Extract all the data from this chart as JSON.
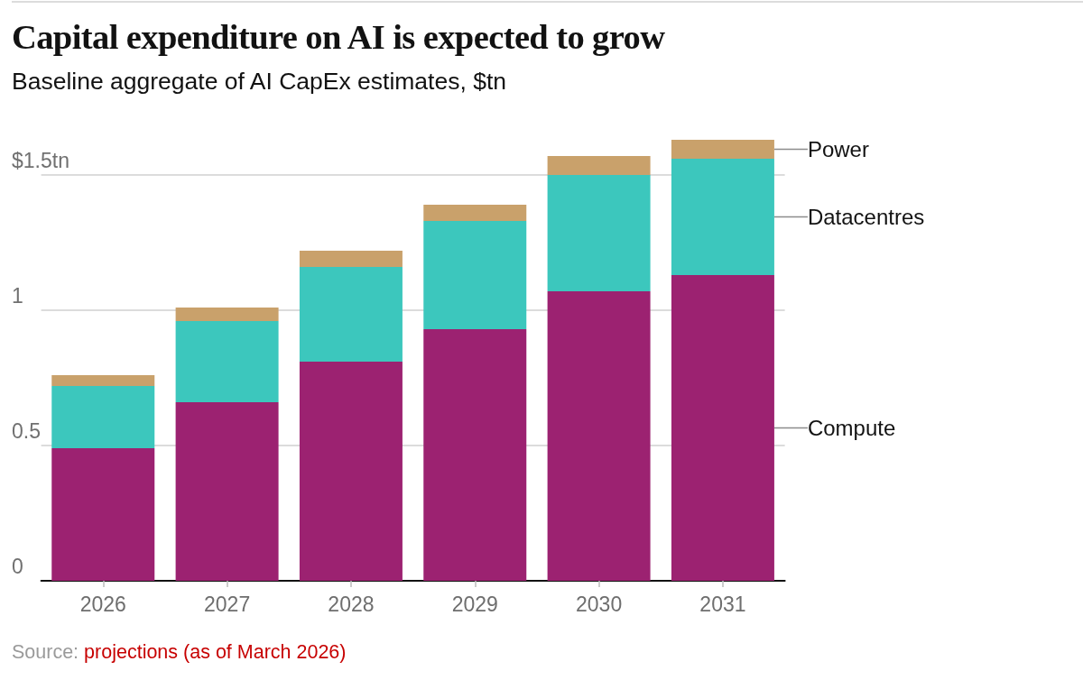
{
  "chart_data": {
    "type": "bar",
    "title": "Capital expenditure on AI is expected to grow",
    "subtitle": "Baseline aggregate of AI CapEx estimates, $tn",
    "annotations": [
      "Source:",
      "projections (as of March 2026)"
    ],
    "categories": [
      "2026",
      "2027",
      "2028",
      "2029",
      "2030",
      "2031"
    ],
    "stacked": true,
    "series": [
      {
        "name": "Compute",
        "color": "#9c2271",
        "values": [
          0.49,
          0.66,
          0.81,
          0.93,
          1.07,
          1.13
        ]
      },
      {
        "name": "Datacentres",
        "color": "#3cc7bd",
        "values": [
          0.23,
          0.3,
          0.35,
          0.4,
          0.43,
          0.43
        ]
      },
      {
        "name": "Power",
        "color": "#c9a16b",
        "values": [
          0.04,
          0.05,
          0.06,
          0.06,
          0.07,
          0.07
        ]
      }
    ],
    "ylim": [
      0,
      1.63
    ],
    "yticks": [
      0,
      0.5,
      1,
      {
        "value": 1.5,
        "label": "$1.5tn"
      }
    ],
    "grid": "y"
  }
}
